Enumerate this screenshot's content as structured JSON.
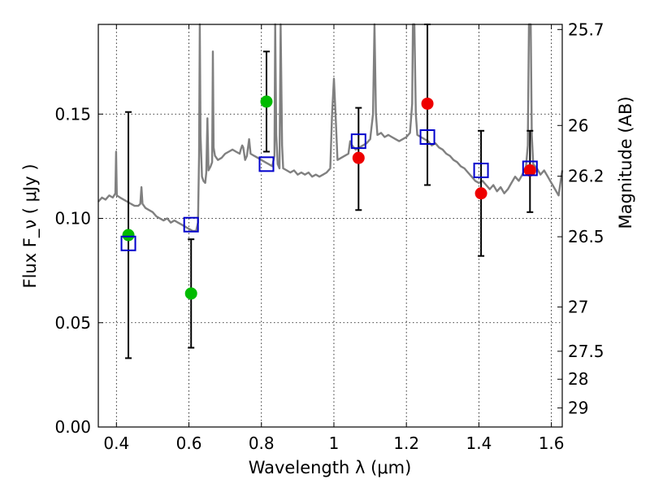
{
  "chart_data": {
    "type": "scatter",
    "xlabel": "Wavelength  λ (μm)",
    "ylabel": "Flux  F_ν  ( μJy )",
    "y2label": "Magnitude (AB)",
    "xlim": [
      0.35,
      1.63
    ],
    "ylim": [
      0.0,
      0.193
    ],
    "xticks": [
      0.4,
      0.6,
      0.8,
      1.0,
      1.2,
      1.4,
      1.6
    ],
    "xtick_labels": [
      "0.4",
      "0.6",
      "0.8",
      "1",
      "1.2",
      "1.4",
      "1.6"
    ],
    "yticks": [
      0.0,
      0.05,
      0.1,
      0.15
    ],
    "ytick_labels": [
      "0.00",
      "0.05",
      "0.10",
      "0.15"
    ],
    "mag_ticks": [
      25.7,
      26,
      26.2,
      26.5,
      27,
      27.5,
      28,
      29
    ],
    "mag_tick_labels": [
      "25.7",
      "26",
      "26.2",
      "26.5",
      "27",
      "27.5",
      "28",
      "29"
    ],
    "grid": true,
    "colors": {
      "spectrum": "#808080",
      "green": "#00bb00",
      "red": "#ee0000",
      "model": "#0000cc",
      "errorbar": "#000000"
    },
    "series": [
      {
        "marker": "green-circle",
        "points": [
          {
            "x": 0.433,
            "y": 0.092,
            "err_lo": 0.033,
            "err_hi": 0.151
          },
          {
            "x": 0.606,
            "y": 0.064,
            "err_lo": 0.038,
            "err_hi": 0.09
          },
          {
            "x": 0.814,
            "y": 0.156,
            "err_lo": 0.132,
            "err_hi": 0.18
          }
        ]
      },
      {
        "marker": "red-circle",
        "points": [
          {
            "x": 1.068,
            "y": 0.129,
            "err_lo": 0.104,
            "err_hi": 0.153
          },
          {
            "x": 1.258,
            "y": 0.155,
            "err_lo": 0.116,
            "err_hi": 0.193
          },
          {
            "x": 1.406,
            "y": 0.112,
            "err_lo": 0.082,
            "err_hi": 0.142
          },
          {
            "x": 1.541,
            "y": 0.123,
            "err_lo": 0.103,
            "err_hi": 0.142
          }
        ]
      },
      {
        "marker": "blue-open-square",
        "points": [
          {
            "x": 0.433,
            "y": 0.088
          },
          {
            "x": 0.606,
            "y": 0.097
          },
          {
            "x": 0.814,
            "y": 0.126
          },
          {
            "x": 1.068,
            "y": 0.137
          },
          {
            "x": 1.258,
            "y": 0.139
          },
          {
            "x": 1.406,
            "y": 0.123
          },
          {
            "x": 1.541,
            "y": 0.124
          }
        ]
      }
    ],
    "spectrum": [
      [
        0.35,
        0.108
      ],
      [
        0.36,
        0.11
      ],
      [
        0.37,
        0.109
      ],
      [
        0.38,
        0.111
      ],
      [
        0.39,
        0.11
      ],
      [
        0.397,
        0.112
      ],
      [
        0.399,
        0.132
      ],
      [
        0.401,
        0.111
      ],
      [
        0.41,
        0.11
      ],
      [
        0.42,
        0.109
      ],
      [
        0.43,
        0.108
      ],
      [
        0.44,
        0.107
      ],
      [
        0.45,
        0.106
      ],
      [
        0.46,
        0.106
      ],
      [
        0.466,
        0.107
      ],
      [
        0.469,
        0.115
      ],
      [
        0.472,
        0.107
      ],
      [
        0.48,
        0.105
      ],
      [
        0.49,
        0.104
      ],
      [
        0.5,
        0.103
      ],
      [
        0.51,
        0.101
      ],
      [
        0.52,
        0.1
      ],
      [
        0.53,
        0.099
      ],
      [
        0.54,
        0.1
      ],
      [
        0.55,
        0.098
      ],
      [
        0.56,
        0.099
      ],
      [
        0.57,
        0.098
      ],
      [
        0.58,
        0.097
      ],
      [
        0.59,
        0.096
      ],
      [
        0.6,
        0.095
      ],
      [
        0.61,
        0.094
      ],
      [
        0.62,
        0.094
      ],
      [
        0.625,
        0.098
      ],
      [
        0.628,
        0.13
      ],
      [
        0.63,
        0.193
      ],
      [
        0.632,
        0.14
      ],
      [
        0.636,
        0.12
      ],
      [
        0.64,
        0.118
      ],
      [
        0.645,
        0.117
      ],
      [
        0.648,
        0.122
      ],
      [
        0.651,
        0.148
      ],
      [
        0.654,
        0.123
      ],
      [
        0.66,
        0.125
      ],
      [
        0.664,
        0.127
      ],
      [
        0.666,
        0.18
      ],
      [
        0.668,
        0.134
      ],
      [
        0.672,
        0.13
      ],
      [
        0.68,
        0.128
      ],
      [
        0.69,
        0.129
      ],
      [
        0.7,
        0.131
      ],
      [
        0.71,
        0.132
      ],
      [
        0.72,
        0.133
      ],
      [
        0.73,
        0.132
      ],
      [
        0.74,
        0.131
      ],
      [
        0.743,
        0.133
      ],
      [
        0.747,
        0.135
      ],
      [
        0.75,
        0.134
      ],
      [
        0.755,
        0.128
      ],
      [
        0.76,
        0.13
      ],
      [
        0.766,
        0.138
      ],
      [
        0.77,
        0.131
      ],
      [
        0.78,
        0.13
      ],
      [
        0.79,
        0.129
      ],
      [
        0.8,
        0.128
      ],
      [
        0.81,
        0.127
      ],
      [
        0.82,
        0.126
      ],
      [
        0.83,
        0.125
      ],
      [
        0.836,
        0.13
      ],
      [
        0.838,
        0.193
      ],
      [
        0.841,
        0.14
      ],
      [
        0.845,
        0.126
      ],
      [
        0.85,
        0.124
      ],
      [
        0.853,
        0.193
      ],
      [
        0.857,
        0.135
      ],
      [
        0.86,
        0.124
      ],
      [
        0.87,
        0.123
      ],
      [
        0.88,
        0.122
      ],
      [
        0.89,
        0.123
      ],
      [
        0.9,
        0.121
      ],
      [
        0.91,
        0.122
      ],
      [
        0.92,
        0.121
      ],
      [
        0.93,
        0.122
      ],
      [
        0.94,
        0.12
      ],
      [
        0.95,
        0.121
      ],
      [
        0.96,
        0.12
      ],
      [
        0.97,
        0.121
      ],
      [
        0.98,
        0.122
      ],
      [
        0.99,
        0.124
      ],
      [
        0.995,
        0.15
      ],
      [
        1.0,
        0.167
      ],
      [
        1.005,
        0.148
      ],
      [
        1.01,
        0.128
      ],
      [
        1.02,
        0.129
      ],
      [
        1.03,
        0.13
      ],
      [
        1.04,
        0.131
      ],
      [
        1.045,
        0.137
      ],
      [
        1.05,
        0.135
      ],
      [
        1.06,
        0.133
      ],
      [
        1.07,
        0.134
      ],
      [
        1.08,
        0.135
      ],
      [
        1.09,
        0.136
      ],
      [
        1.1,
        0.138
      ],
      [
        1.108,
        0.15
      ],
      [
        1.112,
        0.193
      ],
      [
        1.116,
        0.15
      ],
      [
        1.12,
        0.14
      ],
      [
        1.13,
        0.141
      ],
      [
        1.14,
        0.139
      ],
      [
        1.15,
        0.14
      ],
      [
        1.16,
        0.139
      ],
      [
        1.17,
        0.138
      ],
      [
        1.18,
        0.137
      ],
      [
        1.19,
        0.138
      ],
      [
        1.2,
        0.139
      ],
      [
        1.21,
        0.141
      ],
      [
        1.216,
        0.155
      ],
      [
        1.218,
        0.193
      ],
      [
        1.222,
        0.193
      ],
      [
        1.226,
        0.15
      ],
      [
        1.23,
        0.14
      ],
      [
        1.24,
        0.139
      ],
      [
        1.25,
        0.138
      ],
      [
        1.26,
        0.137
      ],
      [
        1.27,
        0.135
      ],
      [
        1.28,
        0.136
      ],
      [
        1.29,
        0.134
      ],
      [
        1.3,
        0.133
      ],
      [
        1.31,
        0.131
      ],
      [
        1.32,
        0.13
      ],
      [
        1.33,
        0.128
      ],
      [
        1.34,
        0.127
      ],
      [
        1.35,
        0.125
      ],
      [
        1.36,
        0.124
      ],
      [
        1.37,
        0.122
      ],
      [
        1.38,
        0.12
      ],
      [
        1.39,
        0.118
      ],
      [
        1.4,
        0.117
      ],
      [
        1.41,
        0.118
      ],
      [
        1.42,
        0.116
      ],
      [
        1.43,
        0.114
      ],
      [
        1.44,
        0.116
      ],
      [
        1.45,
        0.113
      ],
      [
        1.46,
        0.115
      ],
      [
        1.47,
        0.112
      ],
      [
        1.48,
        0.114
      ],
      [
        1.49,
        0.117
      ],
      [
        1.5,
        0.12
      ],
      [
        1.51,
        0.118
      ],
      [
        1.52,
        0.121
      ],
      [
        1.53,
        0.125
      ],
      [
        1.535,
        0.135
      ],
      [
        1.538,
        0.193
      ],
      [
        1.543,
        0.193
      ],
      [
        1.546,
        0.14
      ],
      [
        1.55,
        0.126
      ],
      [
        1.56,
        0.124
      ],
      [
        1.57,
        0.121
      ],
      [
        1.58,
        0.123
      ],
      [
        1.59,
        0.12
      ],
      [
        1.6,
        0.117
      ],
      [
        1.61,
        0.114
      ],
      [
        1.62,
        0.111
      ],
      [
        1.63,
        0.123
      ]
    ]
  }
}
